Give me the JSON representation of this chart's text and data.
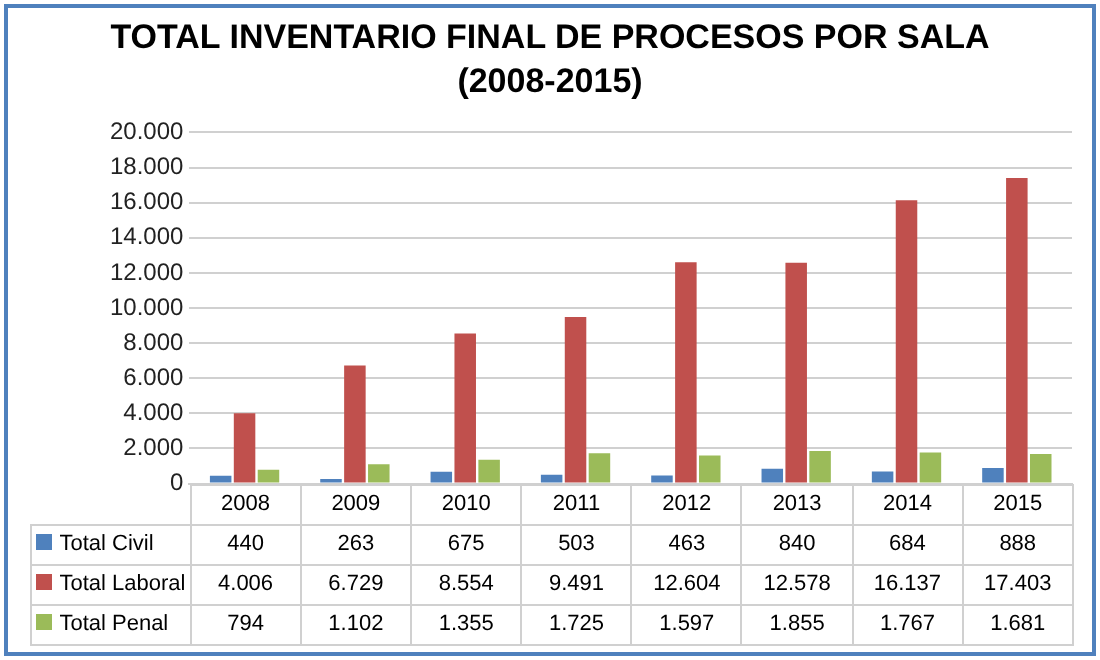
{
  "chart_data": {
    "type": "bar",
    "title": "TOTAL INVENTARIO FINAL DE PROCESOS POR SALA (2008-2015)",
    "categories": [
      "2008",
      "2009",
      "2010",
      "2011",
      "2012",
      "2013",
      "2014",
      "2015"
    ],
    "series": [
      {
        "name": "Total Civil",
        "color": "#4f81bd",
        "values": [
          440,
          263,
          675,
          503,
          463,
          840,
          684,
          888
        ],
        "value_labels": [
          "440",
          "263",
          "675",
          "503",
          "463",
          "840",
          "684",
          "888"
        ]
      },
      {
        "name": "Total Laboral",
        "color": "#c0504d",
        "values": [
          4006,
          6729,
          8554,
          9491,
          12604,
          12578,
          16137,
          17403
        ],
        "value_labels": [
          "4.006",
          "6.729",
          "8.554",
          "9.491",
          "12.604",
          "12.578",
          "16.137",
          "17.403"
        ]
      },
      {
        "name": "Total Penal",
        "color": "#9bbb59",
        "values": [
          794,
          1102,
          1355,
          1725,
          1597,
          1855,
          1767,
          1681
        ],
        "value_labels": [
          "794",
          "1.102",
          "1.355",
          "1.725",
          "1.597",
          "1.855",
          "1.767",
          "1.681"
        ]
      }
    ],
    "ylim": [
      0,
      20000
    ],
    "yticks": [
      {
        "value": 0,
        "label": "0"
      },
      {
        "value": 2000,
        "label": "2.000"
      },
      {
        "value": 4000,
        "label": "4.000"
      },
      {
        "value": 6000,
        "label": "6.000"
      },
      {
        "value": 8000,
        "label": "8.000"
      },
      {
        "value": 10000,
        "label": "10.000"
      },
      {
        "value": 12000,
        "label": "12.000"
      },
      {
        "value": 14000,
        "label": "14.000"
      },
      {
        "value": 16000,
        "label": "16.000"
      },
      {
        "value": 18000,
        "label": "18.000"
      },
      {
        "value": 20000,
        "label": "20.000"
      }
    ],
    "grid": "y",
    "legend": "bottom"
  }
}
